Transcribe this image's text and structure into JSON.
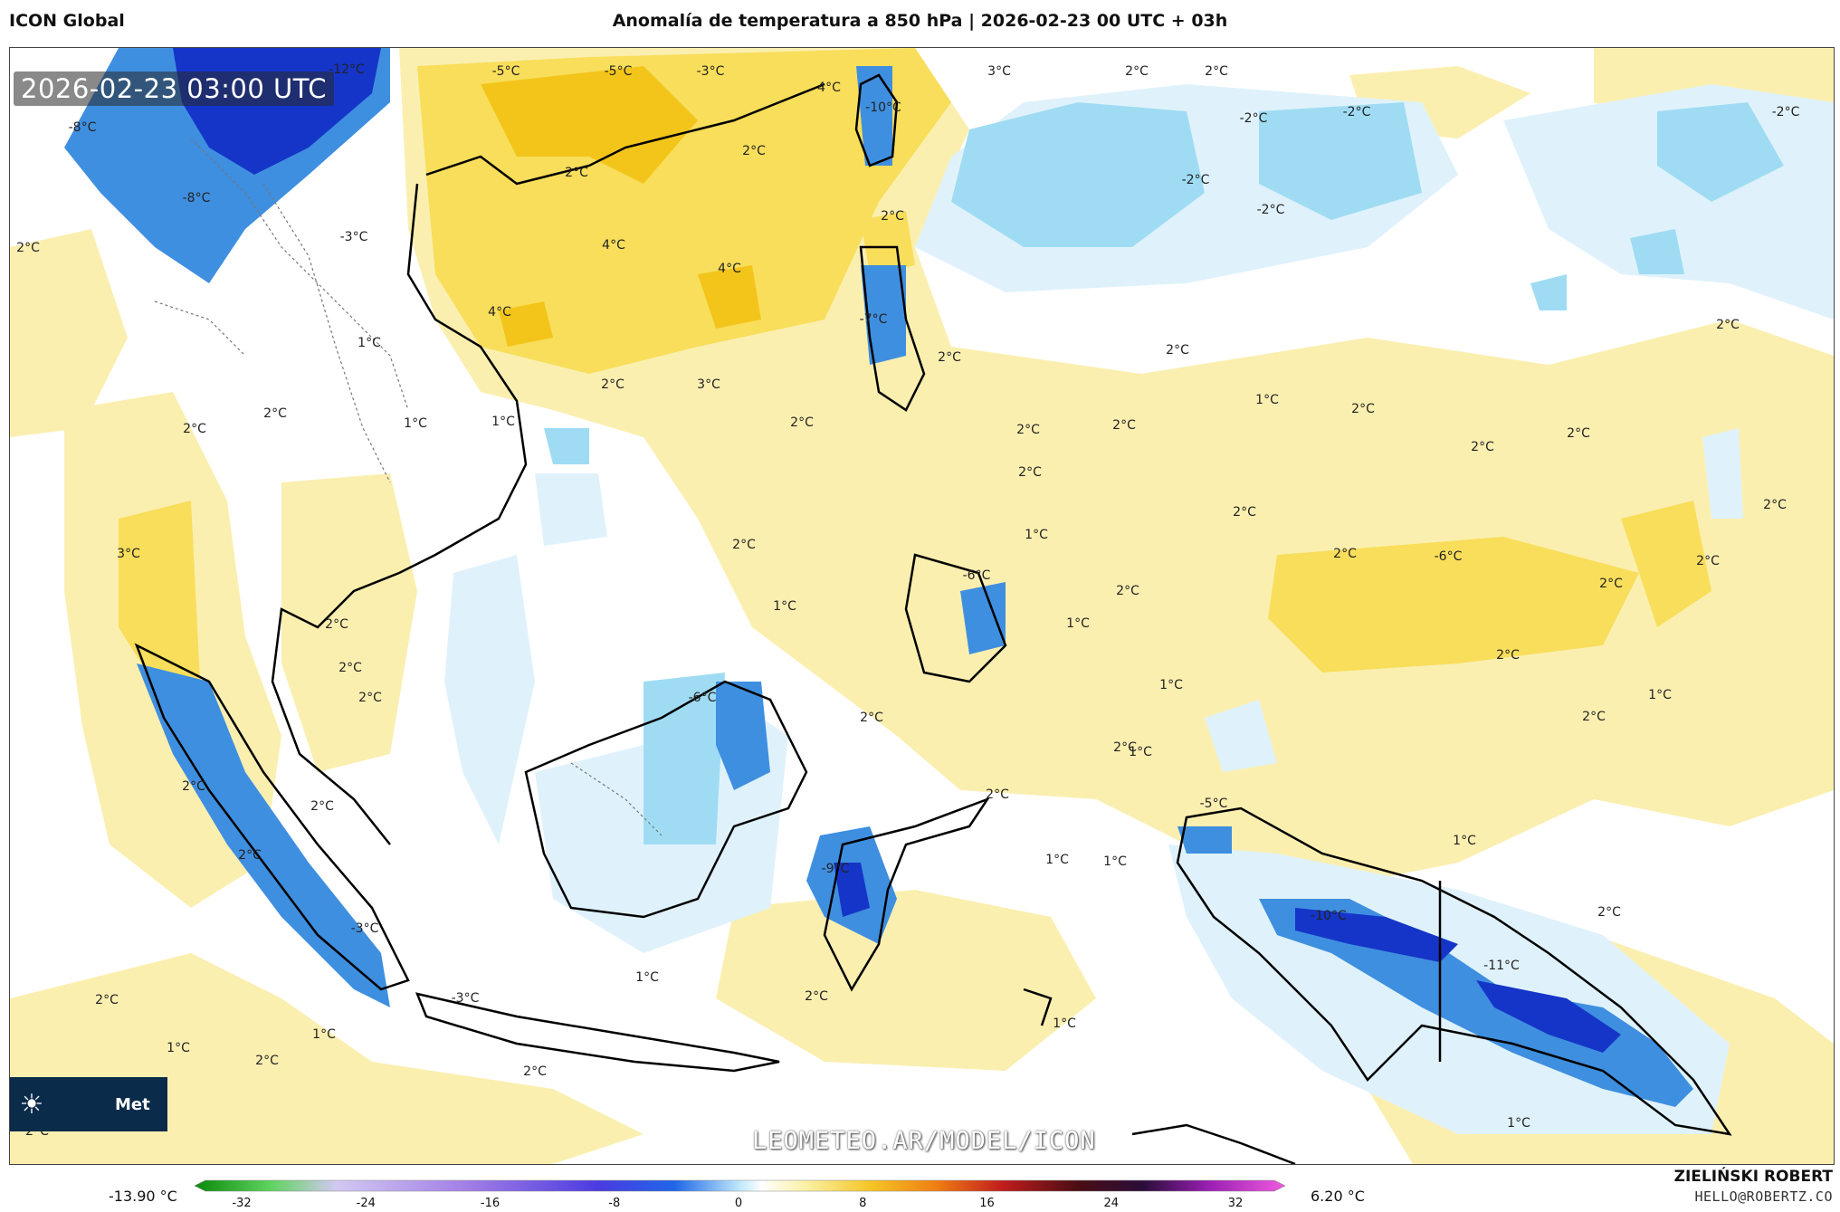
{
  "header": {
    "model": "ICON Global",
    "title": "Anomalía de temperatura a 850 hPa | 2026-02-23 00 UTC + 03h"
  },
  "map": {
    "timestamp": "2026-02-23 03:00 UTC",
    "watermark": "LEOMETEO.AR/MODEL/ICON",
    "logo_text": "Met",
    "logo_icon": "sun-icon",
    "contour_labels": [
      {
        "text": "-12°C"
      },
      {
        "text": "-5°C"
      },
      {
        "text": "-5°C"
      },
      {
        "text": "-3°C"
      },
      {
        "text": "4°C"
      },
      {
        "text": "-10°C"
      },
      {
        "text": "3°C"
      },
      {
        "text": "2°C"
      },
      {
        "text": "2°C"
      },
      {
        "text": "-2°C"
      },
      {
        "text": "-2°C"
      },
      {
        "text": "-2°C"
      },
      {
        "text": "-8°C"
      },
      {
        "text": "2°C"
      },
      {
        "text": "-2°C"
      },
      {
        "text": "2°C"
      },
      {
        "text": "-2°C"
      },
      {
        "text": "-8°C"
      },
      {
        "text": "2°C"
      },
      {
        "text": "2°C"
      },
      {
        "text": "-3°C"
      },
      {
        "text": "4°C"
      },
      {
        "text": "4°C"
      },
      {
        "text": "1°C"
      },
      {
        "text": "4°C"
      },
      {
        "text": "2°C"
      },
      {
        "text": "-7°C"
      },
      {
        "text": "2°C"
      },
      {
        "text": "2°C"
      },
      {
        "text": "2°C"
      },
      {
        "text": "3°C"
      },
      {
        "text": "1°C"
      },
      {
        "text": "2°C"
      },
      {
        "text": "2°C"
      },
      {
        "text": "1°C"
      },
      {
        "text": "2°C"
      },
      {
        "text": "2°C"
      },
      {
        "text": "2°C"
      },
      {
        "text": "2°C"
      },
      {
        "text": "2°C"
      },
      {
        "text": "2°C"
      },
      {
        "text": "2°C"
      },
      {
        "text": "1°C"
      },
      {
        "text": "2°C"
      },
      {
        "text": "2°C"
      },
      {
        "text": "2°C"
      },
      {
        "text": "3°C"
      },
      {
        "text": "2°C"
      },
      {
        "text": "1°C"
      },
      {
        "text": "-6°C"
      },
      {
        "text": "2°C"
      },
      {
        "text": "1°C"
      },
      {
        "text": "1°C"
      },
      {
        "text": "2°C"
      },
      {
        "text": "-6°C"
      },
      {
        "text": "2°C"
      },
      {
        "text": "2°C"
      },
      {
        "text": "2°C"
      },
      {
        "text": "1°C"
      },
      {
        "text": "1°C"
      },
      {
        "text": "-6°C"
      },
      {
        "text": "2°C"
      },
      {
        "text": "2°C"
      },
      {
        "text": "2°C"
      },
      {
        "text": "2°C"
      },
      {
        "text": "2°C"
      },
      {
        "text": "2°C"
      },
      {
        "text": "1°C"
      },
      {
        "text": "2°C"
      },
      {
        "text": "-5°C"
      },
      {
        "text": "2°C"
      },
      {
        "text": "1°C"
      },
      {
        "text": "-9°C"
      },
      {
        "text": "2°C"
      },
      {
        "text": "1°C"
      },
      {
        "text": "1°C"
      },
      {
        "text": "-10°C"
      },
      {
        "text": "2°C"
      },
      {
        "text": "-3°C"
      },
      {
        "text": "-11°C"
      },
      {
        "text": "2°C"
      },
      {
        "text": "1°C"
      },
      {
        "text": "-3°C"
      },
      {
        "text": "2°C"
      },
      {
        "text": "1°C"
      },
      {
        "text": "1°C"
      },
      {
        "text": "1°C"
      },
      {
        "text": "2°C"
      },
      {
        "text": "2°C"
      },
      {
        "text": "1°C"
      },
      {
        "text": "2°C"
      }
    ]
  },
  "colorbar": {
    "min_label": "-13.90 °C",
    "max_label": "6.20 °C",
    "ticks": [
      "-32",
      "-24",
      "-16",
      "-8",
      "0",
      "8",
      "16",
      "24",
      "32"
    ]
  },
  "footer": {
    "author": "ZIELIŃSKI ROBERT",
    "email": "HELLO@ROBERTZ.CO"
  },
  "colors": {
    "warm_light": "#fbefb0",
    "warm_mid": "#f8de5a",
    "warm_strong": "#f3c51b",
    "cold_light": "#dff2fb",
    "cold_mid": "#9fdcf3",
    "cold_strong": "#3f8fe0",
    "cold_deep": "#1535c8",
    "land_outline": "#000000",
    "logo_bg": "#0b2b4a"
  }
}
